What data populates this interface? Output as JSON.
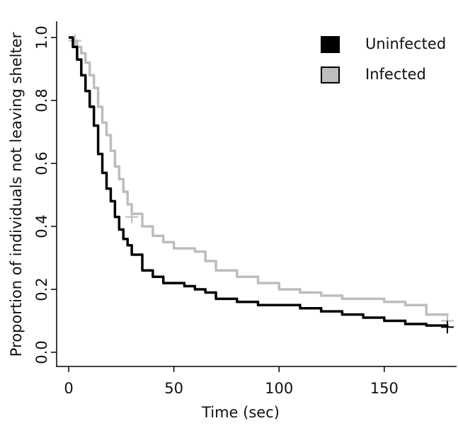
{
  "chart_data": {
    "type": "step",
    "xlabel": "Time (sec)",
    "ylabel": "Proportion of individuals not leaving shelter",
    "x": [
      0,
      2,
      4,
      6,
      8,
      10,
      12,
      14,
      16,
      18,
      20,
      22,
      24,
      26,
      28,
      30,
      35,
      40,
      45,
      50,
      55,
      60,
      65,
      70,
      80,
      90,
      100,
      110,
      120,
      130,
      140,
      150,
      160,
      170,
      180
    ],
    "series": [
      {
        "name": "Uninfected",
        "color": "#000000",
        "values": [
          1.0,
          0.97,
          0.93,
          0.88,
          0.83,
          0.78,
          0.72,
          0.63,
          0.57,
          0.52,
          0.48,
          0.43,
          0.39,
          0.36,
          0.34,
          0.31,
          0.26,
          0.24,
          0.22,
          0.22,
          0.21,
          0.2,
          0.19,
          0.17,
          0.16,
          0.15,
          0.15,
          0.14,
          0.13,
          0.12,
          0.11,
          0.1,
          0.09,
          0.085,
          0.085
        ],
        "censor_x": [
          180
        ],
        "censor_y": [
          0.08
        ]
      },
      {
        "name": "Infected",
        "color": "#bdbdbd",
        "values": [
          1.0,
          0.99,
          0.97,
          0.95,
          0.92,
          0.88,
          0.84,
          0.78,
          0.73,
          0.69,
          0.64,
          0.59,
          0.55,
          0.51,
          0.47,
          0.44,
          0.4,
          0.37,
          0.35,
          0.33,
          0.33,
          0.32,
          0.29,
          0.26,
          0.24,
          0.22,
          0.2,
          0.19,
          0.18,
          0.17,
          0.17,
          0.16,
          0.15,
          0.12,
          0.12
        ],
        "censor_x": [
          3,
          30,
          180
        ],
        "censor_y": [
          0.99,
          0.43,
          0.1
        ]
      }
    ],
    "xlim": [
      0,
      180
    ],
    "ylim": [
      0,
      1
    ],
    "xticks": [
      0,
      50,
      100,
      150
    ],
    "yticks": [
      {
        "value": 0,
        "label": "0.0"
      },
      0.2,
      0.4,
      0.6,
      0.8,
      {
        "value": 1,
        "label": "1.0"
      }
    ],
    "legend": "top-right"
  }
}
